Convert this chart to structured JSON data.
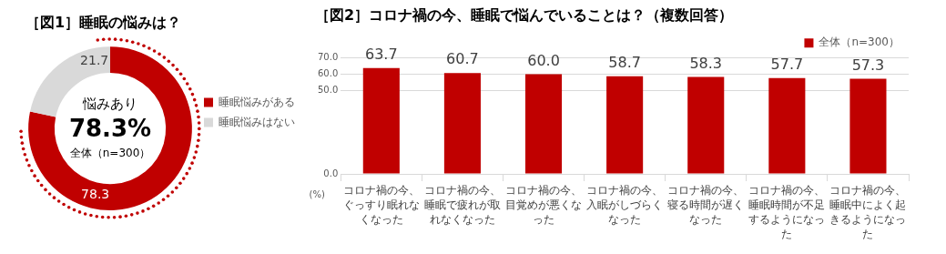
{
  "chart_data": [
    {
      "type": "donut",
      "title": "［図1］睡眠の悩みは？",
      "categories": [
        "睡眠悩みがある",
        "睡眠悩みはない"
      ],
      "values": [
        78.3,
        21.7
      ],
      "colors": [
        "#c00000",
        "#d9d9d9"
      ],
      "data_labels": true,
      "legend": "right",
      "annotations": [
        "悩みあり",
        "78.3%",
        "全体（n=300）"
      ]
    },
    {
      "type": "bar",
      "title": "［図2］コロナ禍の今、睡眠で悩んでいることは？（複数回答）",
      "categories": [
        "コロナ禍の今、ぐっすり眠れなくなった",
        "コロナ禍の今、睡眠で疲れが取れなくなった",
        "コロナ禍の今、目覚めが悪くなった",
        "コロナ禍の今、入眠がしづらくなった",
        "コロナ禍の今、寝る時間が遅くなった",
        "コロナ禍の今、睡眠時間が不足するようになった",
        "コロナ禍の今、睡眠中によく起きるようになった"
      ],
      "series": [
        {
          "name": "全体（n=300）",
          "color": "#c00000",
          "values": [
            63.7,
            60.7,
            60.0,
            58.7,
            58.3,
            57.7,
            57.3
          ],
          "value_labels": [
            "63.7",
            "60.7",
            "60.0",
            "58.7",
            "58.3",
            "57.7",
            "57.3"
          ]
        }
      ],
      "ylim": [
        0,
        70
      ],
      "yticks": [
        {
          "value": 0,
          "label": "0.0"
        },
        {
          "value": 50,
          "label": "50.0"
        },
        {
          "value": 60,
          "label": "60.0"
        },
        {
          "value": 70,
          "label": "70.0"
        }
      ],
      "ylabel": "(%)",
      "grid": "y",
      "legend": "top right"
    }
  ]
}
